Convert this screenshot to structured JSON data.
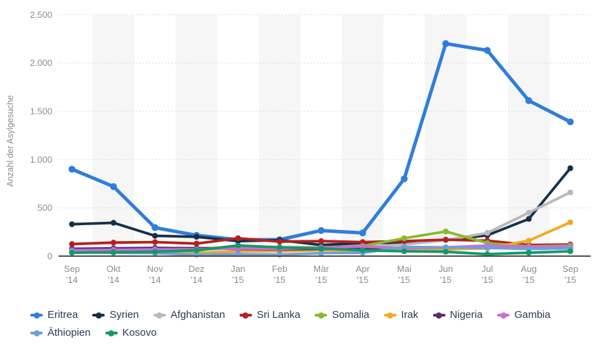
{
  "chart_data": {
    "type": "line",
    "title": "",
    "xlabel": "",
    "ylabel": "Anzahl der Asylgesuche",
    "ylim": [
      0,
      2500
    ],
    "yticks": [
      0,
      500,
      1000,
      1500,
      2000,
      2500
    ],
    "ytick_labels": [
      "0",
      "500",
      "1.000",
      "1.500",
      "2.000",
      "2.500"
    ],
    "grid": "horizontal-dotted",
    "plot_bands": "light-gray stripes behind every second month (Okt, Dez, Feb, Apr, Jun, Aug)",
    "legend_position": "bottom",
    "categories": [
      "Sep '14",
      "Okt '14",
      "Nov '14",
      "Dez '14",
      "Jan '15",
      "Feb '15",
      "Mär '15",
      "Apr '15",
      "Mai '15",
      "Jun '15",
      "Jul '15",
      "Aug '15",
      "Sep '15"
    ],
    "series": [
      {
        "name": "Eritrea",
        "color": "#2f7ed9",
        "values": [
          900,
          720,
          295,
          215,
          170,
          170,
          265,
          240,
          800,
          2200,
          2130,
          1610,
          1390
        ]
      },
      {
        "name": "Syrien",
        "color": "#16304a",
        "values": [
          330,
          345,
          210,
          200,
          155,
          165,
          115,
          135,
          140,
          165,
          215,
          385,
          910
        ]
      },
      {
        "name": "Afghanistan",
        "color": "#b9b9b9",
        "values": [
          70,
          75,
          80,
          85,
          90,
          95,
          90,
          95,
          120,
          165,
          240,
          450,
          660
        ]
      },
      {
        "name": "Sri Lanka",
        "color": "#b4201e",
        "values": [
          125,
          140,
          145,
          130,
          185,
          150,
          155,
          145,
          155,
          170,
          160,
          115,
          120
        ]
      },
      {
        "name": "Somalia",
        "color": "#88bb2a",
        "values": [
          65,
          70,
          65,
          70,
          90,
          85,
          90,
          105,
          185,
          255,
          135,
          100,
          110
        ]
      },
      {
        "name": "Irak",
        "color": "#eeab25",
        "values": [
          45,
          50,
          45,
          35,
          50,
          50,
          60,
          60,
          65,
          70,
          80,
          160,
          350
        ]
      },
      {
        "name": "Nigeria",
        "color": "#582c72",
        "values": [
          75,
          80,
          85,
          80,
          75,
          70,
          75,
          80,
          85,
          90,
          95,
          90,
          95
        ]
      },
      {
        "name": "Gambia",
        "color": "#c76fd6",
        "values": [
          60,
          65,
          70,
          70,
          80,
          75,
          90,
          100,
          80,
          90,
          110,
          95,
          100
        ]
      },
      {
        "name": "Äthiopien",
        "color": "#709fd9",
        "values": [
          40,
          35,
          30,
          15,
          20,
          15,
          30,
          35,
          95,
          90,
          85,
          75,
          80
        ]
      },
      {
        "name": "Kosovo",
        "color": "#119a67",
        "values": [
          35,
          40,
          45,
          60,
          110,
          90,
          80,
          60,
          50,
          45,
          20,
          35,
          50
        ]
      }
    ]
  },
  "colors": {
    "background": "#ffffff",
    "stripe": "#f6f6f6",
    "gridline": "#d8d8d8",
    "axis_line": "#4d4d4d",
    "tick_text": "#8c8c8c",
    "legend_text": "#253c55"
  }
}
